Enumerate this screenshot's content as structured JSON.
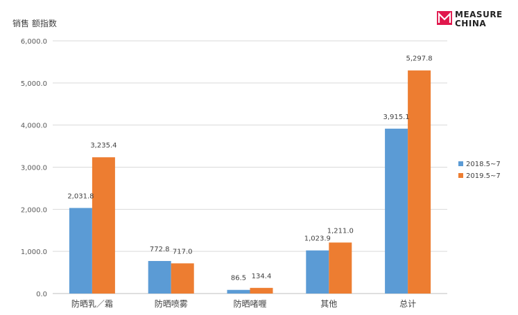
{
  "brand": {
    "line1": "MEASURE",
    "line2": "CHINA",
    "logo_color": "#e0184d"
  },
  "chart_data": {
    "type": "bar",
    "title": "",
    "ylabel": "销售 额指数",
    "xlabel": "",
    "categories": [
      "防晒乳／霜",
      "防晒喷雾",
      "防晒啫喱",
      "其他",
      "总计"
    ],
    "series": [
      {
        "name": "2018.5~7",
        "color": "#5b9bd5",
        "values": [
          2031.8,
          772.8,
          86.5,
          1023.9,
          3915.1
        ],
        "labels": [
          "2,031.8",
          "772.8",
          "86.5",
          "1,023.9",
          "3,915.1"
        ]
      },
      {
        "name": "2019.5~7",
        "color": "#ed7d31",
        "values": [
          3235.4,
          717.0,
          134.4,
          1211.0,
          5297.8
        ],
        "labels": [
          "3,235.4",
          "717.0",
          "134.4",
          "1,211.0",
          "5,297.8"
        ]
      }
    ],
    "ylim": [
      0,
      6000
    ],
    "yticks": [
      0,
      1000,
      2000,
      3000,
      4000,
      5000,
      6000
    ],
    "ytick_labels": [
      "0.0",
      "1,000.0",
      "2,000.0",
      "3,000.0",
      "4,000.0",
      "5,000.0",
      "6,000.0"
    ],
    "grid": true,
    "legend_position": "right"
  }
}
